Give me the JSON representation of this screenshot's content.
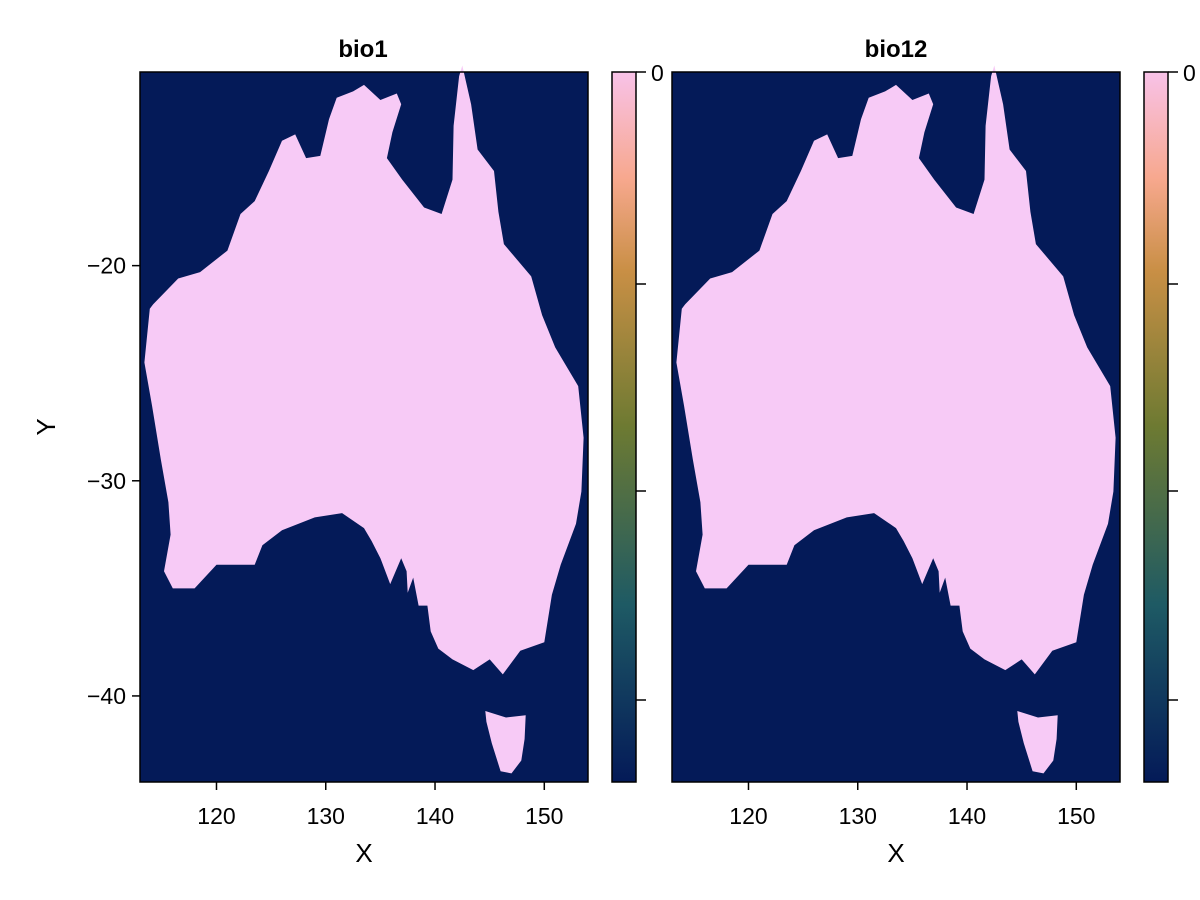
{
  "chart_data": [
    {
      "type": "heatmap",
      "title": "bio1",
      "xlabel": "X",
      "ylabel": "Y",
      "xlim": [
        113,
        154
      ],
      "ylim": [
        -44,
        -11
      ],
      "xticks": [
        120,
        130,
        140,
        150
      ],
      "xtick_labels": [
        "120",
        "130",
        "140",
        "150"
      ],
      "yticks": [
        -20,
        -30,
        -40
      ],
      "ytick_labels": [
        "−20",
        "−30",
        "−40"
      ],
      "grid": false,
      "colors": {
        "land": "#f7caf6",
        "sea": "#041a58"
      },
      "colorbar": {
        "tick_labels": [
          "0"
        ],
        "colors": [
          "#041a58",
          "#1e5a64",
          "#6d7a32",
          "#c98f45",
          "#f7a88e",
          "#f8c2e8"
        ]
      }
    },
    {
      "type": "heatmap",
      "title": "bio12",
      "xlabel": "X",
      "ylabel": "",
      "xlim": [
        113,
        154
      ],
      "ylim": [
        -44,
        -11
      ],
      "xticks": [
        120,
        130,
        140,
        150
      ],
      "xtick_labels": [
        "120",
        "130",
        "140",
        "150"
      ],
      "yticks": [],
      "ytick_labels": [],
      "grid": false,
      "colors": {
        "land": "#f7caf6",
        "sea": "#041a58"
      },
      "colorbar": {
        "tick_labels": [
          "0"
        ],
        "colors": [
          "#041a58",
          "#1e5a64",
          "#6d7a32",
          "#c98f45",
          "#f7a88e",
          "#f8c2e8"
        ]
      }
    }
  ],
  "mainland_outline": [
    [
      114.2,
      -21.8
    ],
    [
      116.5,
      -20.6
    ],
    [
      118.5,
      -20.3
    ],
    [
      121.0,
      -19.3
    ],
    [
      122.2,
      -17.6
    ],
    [
      123.5,
      -17.0
    ],
    [
      124.8,
      -15.6
    ],
    [
      126.0,
      -14.2
    ],
    [
      127.2,
      -13.9
    ],
    [
      128.2,
      -15.0
    ],
    [
      129.5,
      -14.9
    ],
    [
      130.3,
      -13.2
    ],
    [
      131.0,
      -12.2
    ],
    [
      132.5,
      -11.9
    ],
    [
      133.5,
      -11.6
    ],
    [
      135.0,
      -12.3
    ],
    [
      136.5,
      -12.0
    ],
    [
      136.9,
      -12.5
    ],
    [
      136.1,
      -13.8
    ],
    [
      135.6,
      -15.0
    ],
    [
      137.0,
      -16.0
    ],
    [
      139.0,
      -17.3
    ],
    [
      140.6,
      -17.6
    ],
    [
      141.6,
      -16.0
    ],
    [
      141.7,
      -13.5
    ],
    [
      142.2,
      -11.2
    ],
    [
      142.5,
      -10.7
    ],
    [
      143.3,
      -12.5
    ],
    [
      143.9,
      -14.6
    ],
    [
      145.4,
      -15.6
    ],
    [
      145.8,
      -17.5
    ],
    [
      146.3,
      -19.0
    ],
    [
      148.8,
      -20.5
    ],
    [
      149.8,
      -22.3
    ],
    [
      151.0,
      -23.8
    ],
    [
      153.1,
      -25.6
    ],
    [
      153.6,
      -28.0
    ],
    [
      153.4,
      -30.5
    ],
    [
      152.9,
      -32.0
    ],
    [
      151.5,
      -33.9
    ],
    [
      150.7,
      -35.3
    ],
    [
      150.0,
      -37.5
    ],
    [
      147.8,
      -37.9
    ],
    [
      146.2,
      -39.0
    ],
    [
      145.0,
      -38.3
    ],
    [
      143.5,
      -38.8
    ],
    [
      141.6,
      -38.3
    ],
    [
      140.3,
      -37.8
    ],
    [
      139.6,
      -37.0
    ],
    [
      139.3,
      -35.8
    ],
    [
      138.5,
      -35.8
    ],
    [
      138.0,
      -34.5
    ],
    [
      137.5,
      -35.2
    ],
    [
      137.4,
      -34.2
    ],
    [
      136.9,
      -33.6
    ],
    [
      135.9,
      -34.8
    ],
    [
      135.0,
      -33.6
    ],
    [
      134.2,
      -32.8
    ],
    [
      133.5,
      -32.2
    ],
    [
      131.5,
      -31.5
    ],
    [
      129.0,
      -31.7
    ],
    [
      126.0,
      -32.3
    ],
    [
      124.2,
      -33.0
    ],
    [
      123.5,
      -33.9
    ],
    [
      120.0,
      -33.9
    ],
    [
      118.0,
      -35.0
    ],
    [
      116.0,
      -35.0
    ],
    [
      115.2,
      -34.2
    ],
    [
      115.8,
      -32.5
    ],
    [
      115.6,
      -31.0
    ],
    [
      114.9,
      -29.0
    ],
    [
      114.1,
      -26.5
    ],
    [
      113.4,
      -24.5
    ],
    [
      113.9,
      -22.0
    ]
  ],
  "tasmania_outline": [
    [
      144.6,
      -40.7
    ],
    [
      146.5,
      -41.0
    ],
    [
      148.3,
      -40.9
    ],
    [
      148.2,
      -42.0
    ],
    [
      147.9,
      -43.0
    ],
    [
      147.0,
      -43.6
    ],
    [
      146.0,
      -43.5
    ],
    [
      145.2,
      -42.2
    ],
    [
      144.7,
      -41.2
    ]
  ]
}
